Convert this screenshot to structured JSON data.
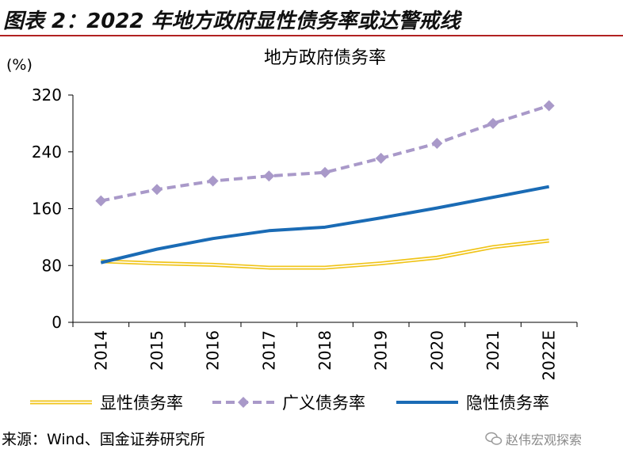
{
  "figure": {
    "title": "图表 2：2022 年地方政府显性债务率或达警戒线"
  },
  "chart_data": {
    "type": "line",
    "title": "地方政府债务率",
    "ylabel": "(%)",
    "xlabel": "",
    "ylim": [
      0,
      320
    ],
    "yticks": [
      0,
      80,
      160,
      240,
      320
    ],
    "categories": [
      "2014",
      "2015",
      "2016",
      "2017",
      "2018",
      "2019",
      "2020",
      "2021",
      "2022E"
    ],
    "grid": false,
    "legend_position": "bottom",
    "series": [
      {
        "name": "显性债务率",
        "style": "double-line",
        "color": "#f0c419",
        "values": [
          86,
          83,
          81,
          77,
          77,
          83,
          91,
          106,
          115
        ]
      },
      {
        "name": "广义债务率",
        "style": "dashed-diamond",
        "color": "#a999c9",
        "values": [
          171,
          187,
          199,
          206,
          211,
          231,
          252,
          280,
          305
        ]
      },
      {
        "name": "隐性债务率",
        "style": "solid",
        "color": "#1a6bb5",
        "values": [
          84,
          103,
          118,
          129,
          134,
          147,
          161,
          176,
          191
        ]
      }
    ]
  },
  "footer": {
    "source": "来源：Wind、国金证券研究所",
    "watermark": "赵伟宏观探索"
  }
}
